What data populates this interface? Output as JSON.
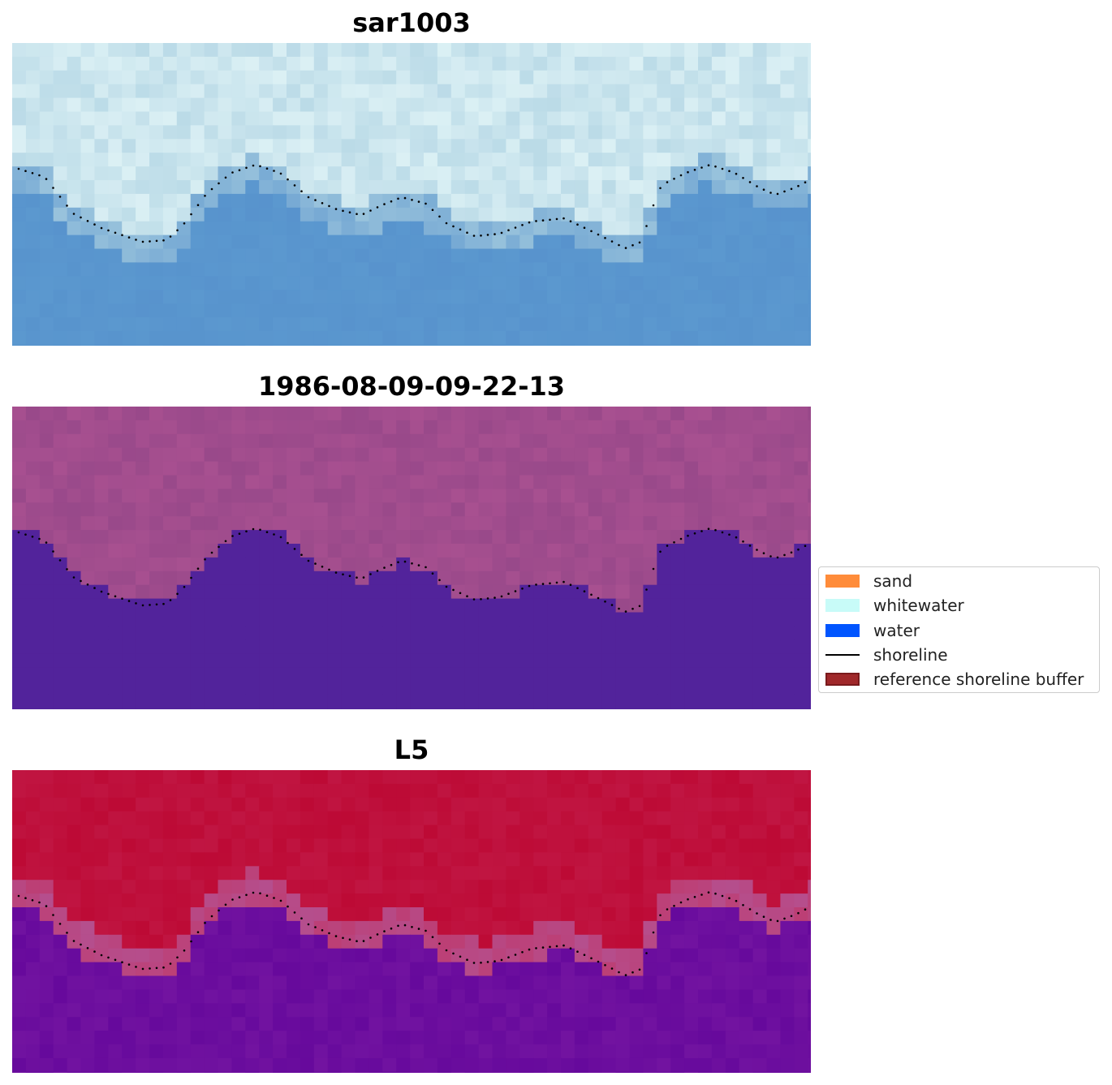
{
  "panels": [
    {
      "title": "sar1003",
      "palette": "sar"
    },
    {
      "title": "1986-08-09-09-22-13",
      "palette": "classified"
    },
    {
      "title": "L5",
      "palette": "index"
    }
  ],
  "legend": {
    "items": [
      {
        "label": "sand",
        "color": "#ff8c3a",
        "kind": "patch"
      },
      {
        "label": "whitewater",
        "color": "#c8fbf8",
        "kind": "patch"
      },
      {
        "label": "water",
        "color": "#0055ff",
        "kind": "patch"
      },
      {
        "label": "shoreline",
        "color": "#000000",
        "kind": "line"
      },
      {
        "label": "reference shoreline buffer",
        "color": "#a0282a",
        "kind": "patch",
        "edge": "#7a1a1c"
      }
    ]
  },
  "colors": {
    "sar_light": "#e4f6f8",
    "sar_mid": "#a9cfe0",
    "sar_dark": "#5691cc",
    "land_pink": "#a85090",
    "water_purple": "#52239b",
    "index_red": "#bd0a35",
    "index_purple": "#66099c",
    "shoreline_dots": "#000000"
  }
}
